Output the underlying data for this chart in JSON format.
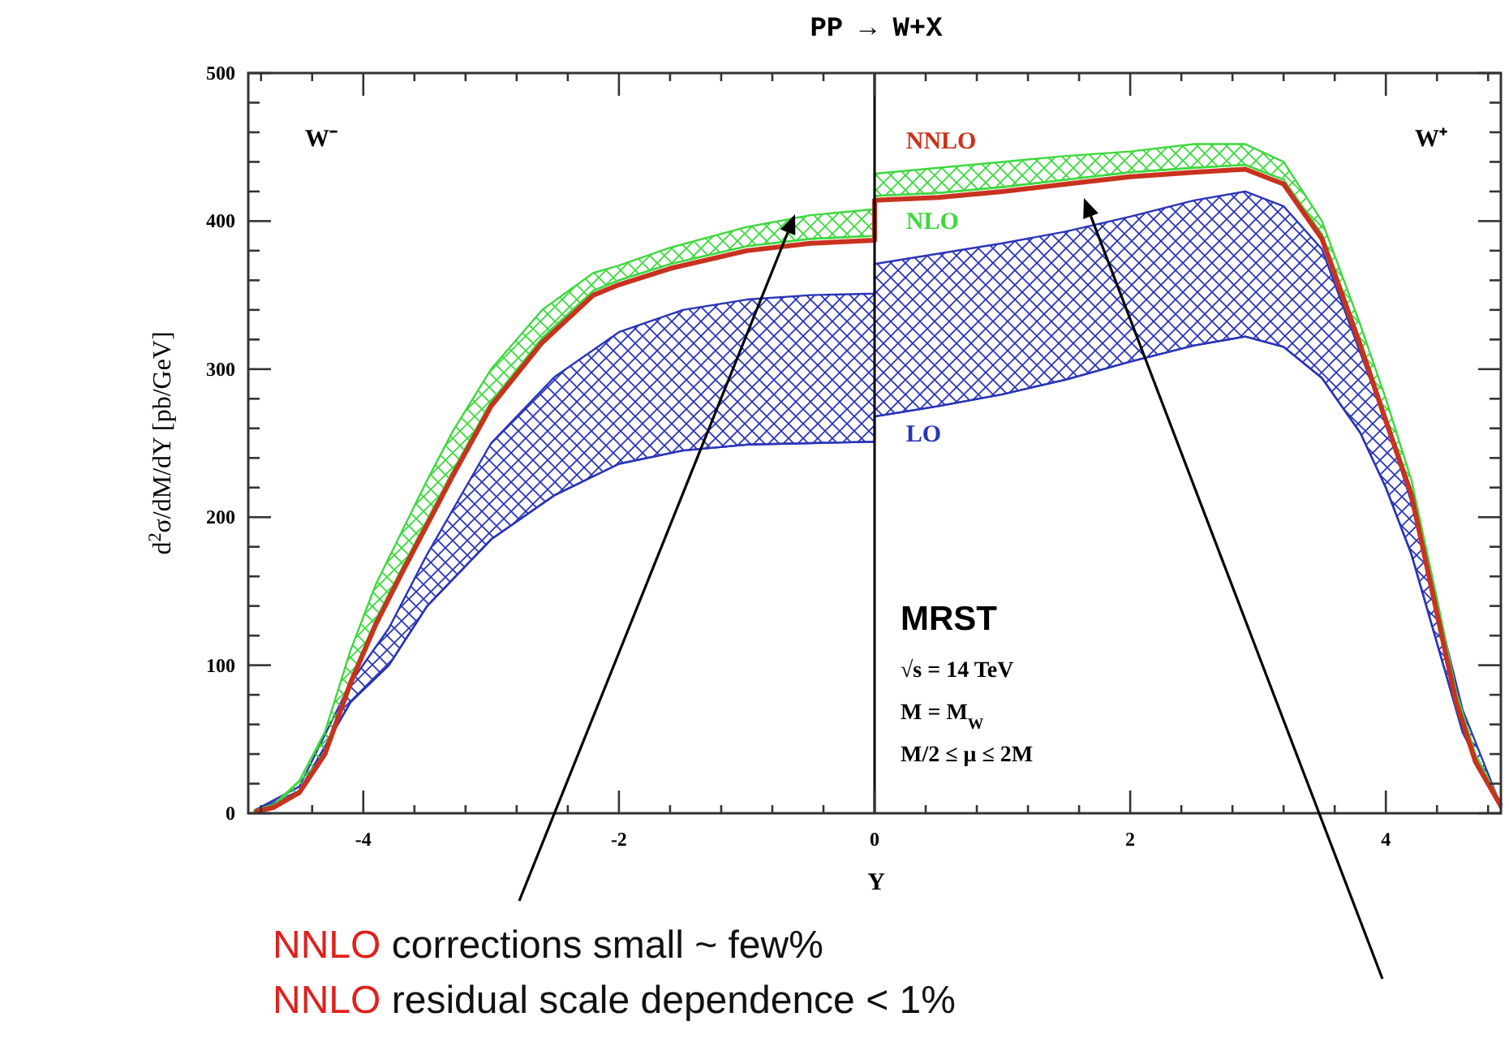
{
  "chart_data": {
    "type": "line",
    "title": "PP → W+X",
    "xlabel": "Y",
    "ylabel": "d$^{2}$σ/dM/dY [pb/GeV]",
    "xlim": [
      -4.9,
      4.9
    ],
    "ylim": [
      0,
      500
    ],
    "xticks": [
      {
        "value": -4.8,
        "label": null
      },
      -4,
      {
        "value": -4.4,
        "label": null
      },
      {
        "value": -3.6,
        "label": null
      },
      {
        "value": -3.2,
        "label": null
      },
      {
        "value": -2.8,
        "label": null
      },
      {
        "value": -2.4,
        "label": null
      },
      -2,
      {
        "value": -1.6,
        "label": null
      },
      {
        "value": -1.2,
        "label": null
      },
      {
        "value": -0.8,
        "label": null
      },
      {
        "value": -0.4,
        "label": null
      },
      0,
      {
        "value": 0.4,
        "label": null
      },
      {
        "value": 0.8,
        "label": null
      },
      {
        "value": 1.2,
        "label": null
      },
      {
        "value": 1.6,
        "label": null
      },
      2,
      {
        "value": 2.4,
        "label": null
      },
      {
        "value": 2.8,
        "label": null
      },
      {
        "value": 3.2,
        "label": null
      },
      {
        "value": 3.6,
        "label": null
      },
      4,
      {
        "value": 4.4,
        "label": null
      },
      {
        "value": 4.8,
        "label": null
      }
    ],
    "yticks": [
      0,
      {
        "value": 20,
        "label": null
      },
      {
        "value": 40,
        "label": null
      },
      {
        "value": 60,
        "label": null
      },
      {
        "value": 80,
        "label": null
      },
      100,
      {
        "value": 120,
        "label": null
      },
      {
        "value": 140,
        "label": null
      },
      {
        "value": 160,
        "label": null
      },
      {
        "value": 180,
        "label": null
      },
      200,
      {
        "value": 220,
        "label": null
      },
      {
        "value": 240,
        "label": null
      },
      {
        "value": 260,
        "label": null
      },
      {
        "value": 280,
        "label": null
      },
      300,
      {
        "value": 320,
        "label": null
      },
      {
        "value": 340,
        "label": null
      },
      {
        "value": 360,
        "label": null
      },
      {
        "value": 380,
        "label": null
      },
      400,
      {
        "value": 420,
        "label": null
      },
      {
        "value": 440,
        "label": null
      },
      {
        "value": 460,
        "label": null
      },
      {
        "value": 480,
        "label": null
      },
      500
    ],
    "grid": false,
    "legend": false,
    "ref_lines": [
      {
        "axis": "x",
        "value": 0,
        "color": "#000000"
      }
    ],
    "series": [
      {
        "name": "LO",
        "color": "#2a35b8",
        "x": [
          -4.85,
          -4.5,
          -4.1,
          -3.8,
          -3.5,
          -3.0,
          -2.5,
          -2.0,
          -1.5,
          -1.0,
          -0.5,
          0,
          0,
          0.5,
          1,
          1.5,
          2,
          2.5,
          2.9,
          3.2,
          3.5,
          3.8,
          4.0,
          4.2,
          4.4,
          4.6,
          4.9
        ],
        "values": [
          1,
          15,
          75,
          100,
          140,
          185,
          215,
          236,
          245,
          249,
          250,
          251,
          268,
          275,
          283,
          293,
          305,
          316,
          322,
          315,
          294,
          257,
          220,
          175,
          115,
          55,
          3
        ],
        "lower": [
          1,
          15,
          75,
          100,
          140,
          185,
          215,
          236,
          245,
          249,
          250,
          251,
          268,
          275,
          283,
          293,
          305,
          316,
          322,
          315,
          294,
          257,
          220,
          175,
          115,
          55,
          3
        ],
        "upper": [
          2,
          18,
          88,
          125,
          175,
          250,
          295,
          325,
          340,
          347,
          350,
          351,
          371,
          378,
          385,
          393,
          403,
          414,
          420,
          410,
          381,
          311,
          265,
          210,
          140,
          70,
          5
        ]
      },
      {
        "name": "NLO",
        "color": "#3ed83e",
        "x": [
          -4.85,
          -4.7,
          -4.5,
          -4.3,
          -4.1,
          -3.9,
          -3.7,
          -3.5,
          -3.3,
          -3.0,
          -2.6,
          -2.2,
          -2.0,
          -1.6,
          -1.0,
          -0.5,
          0,
          0,
          0.5,
          1,
          1.5,
          2,
          2.5,
          2.9,
          3.2,
          3.5,
          3.8,
          4.0,
          4.2,
          4.4,
          4.55,
          4.7,
          4.9
        ],
        "values": [
          1,
          4,
          15,
          42,
          90,
          131,
          165,
          198,
          231,
          278,
          321,
          353,
          360,
          371,
          383,
          388,
          390,
          417,
          419,
          423,
          428,
          433,
          436,
          438,
          428,
          391,
          319,
          268,
          218,
          138,
          77,
          36,
          5
        ],
        "lower": [
          1,
          4,
          15,
          42,
          90,
          131,
          165,
          198,
          231,
          278,
          321,
          353,
          360,
          371,
          383,
          388,
          390,
          417,
          419,
          423,
          428,
          433,
          436,
          438,
          428,
          391,
          319,
          268,
          218,
          138,
          77,
          36,
          5
        ],
        "upper": [
          2,
          6,
          22,
          55,
          110,
          155,
          190,
          225,
          258,
          300,
          340,
          365,
          370,
          382,
          396,
          404,
          408,
          432,
          436,
          440,
          444,
          447,
          452,
          452,
          440,
          400,
          330,
          280,
          225,
          145,
          82,
          40,
          7
        ]
      },
      {
        "name": "NNLO",
        "color": "#c8321e",
        "x": [
          -4.85,
          -4.7,
          -4.5,
          -4.3,
          -4.1,
          -3.9,
          -3.7,
          -3.5,
          -3.3,
          -3.0,
          -2.6,
          -2.2,
          -2.0,
          -1.6,
          -1.0,
          -0.5,
          0,
          0,
          0.5,
          1,
          1.5,
          2,
          2.5,
          2.9,
          3.2,
          3.5,
          3.8,
          4.0,
          4.2,
          4.4,
          4.55,
          4.7,
          4.9
        ],
        "values": [
          1,
          4,
          14,
          40,
          88,
          128,
          162,
          195,
          228,
          275,
          318,
          350,
          357,
          368,
          380,
          385,
          387,
          414,
          416,
          420,
          425,
          430,
          433,
          435,
          425,
          388,
          316,
          265,
          215,
          135,
          75,
          35,
          5
        ]
      }
    ],
    "annotations": [
      "W⁻",
      "W⁺",
      "MRST",
      "√s = 14 TeV",
      "M = M$_{W}$",
      "M/2 ≤ μ ≤ 2M",
      "NNLO corrections small ~ few%",
      "NNLO residual scale dependence < 1%"
    ]
  }
}
